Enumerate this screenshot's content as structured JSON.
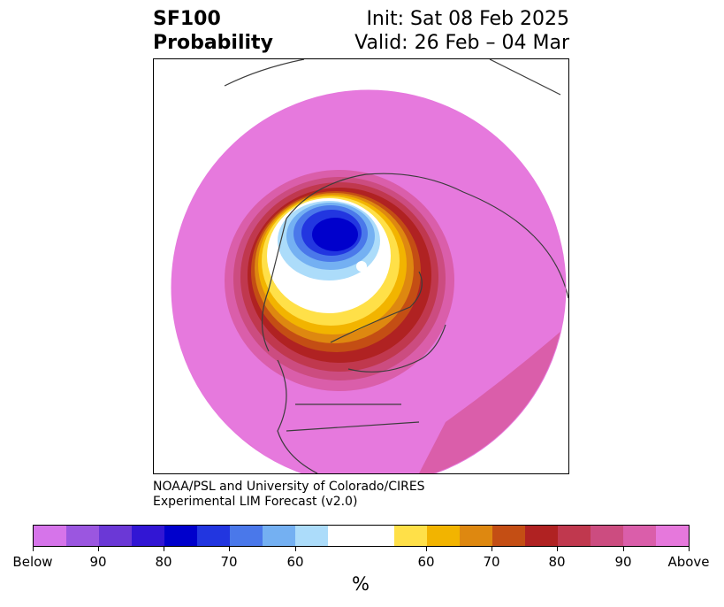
{
  "title": {
    "left_line1": "SF100",
    "left_line2": "Probability",
    "right_line1": "Init: Sat 08 Feb 2025",
    "right_line2": "Valid: 26 Feb – 04 Mar"
  },
  "credit": {
    "line1": "NOAA/PSL and University of Colorado/CIRES",
    "line2": "Experimental LIM Forecast (v2.0)"
  },
  "colorbar": {
    "colors": [
      "#d674ea",
      "#9b56e0",
      "#6b38d6",
      "#3216d4",
      "#0000cc",
      "#2236e0",
      "#4a78ea",
      "#74b0f2",
      "#acdcfa",
      "#ffffff",
      "#ffe048",
      "#f2b400",
      "#de8810",
      "#c44e14",
      "#b02222",
      "#c0384e",
      "#cc4c80",
      "#da5eaa",
      "#e678dc"
    ],
    "tick_labels": [
      "Below",
      "90",
      "80",
      "70",
      "60",
      "60",
      "70",
      "80",
      "90",
      "Above"
    ],
    "unit_label": "%"
  },
  "map_colors": {
    "ocean_bg": "#e679dd",
    "land_lines": "#3c3c3c"
  }
}
